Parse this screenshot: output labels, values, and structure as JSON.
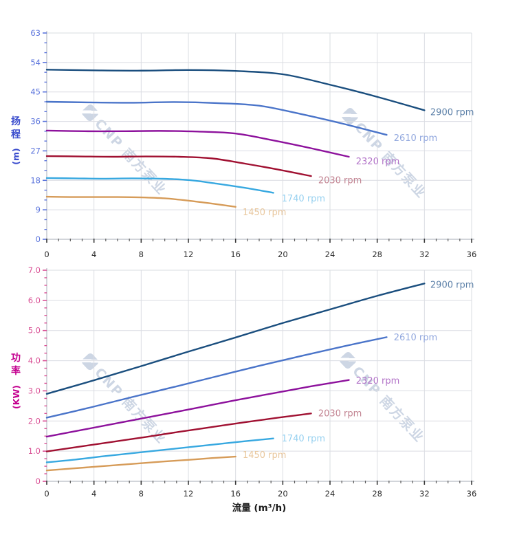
{
  "watermark": {
    "text": "CNP 南方泵业"
  },
  "chart_data": [
    {
      "id": "head-chart",
      "type": "line",
      "y_title_chars": [
        "扬",
        "程"
      ],
      "y_title_unit": "(m)",
      "x_title": null,
      "axis_color": "#5b74dc",
      "title_color": "#3a4ccd",
      "ylim": [
        0,
        63
      ],
      "ymajor": 9,
      "yminor": 3,
      "yticklabels": [
        "0",
        "9",
        "18",
        "27",
        "36",
        "45",
        "54",
        "63"
      ],
      "xlim": [
        0,
        36
      ],
      "xmajor": 4,
      "xminor": 1,
      "xticklabels": [
        "0",
        "4",
        "8",
        "12",
        "16",
        "20",
        "24",
        "28",
        "32",
        "36"
      ],
      "grid": true,
      "legend_position": "end-of-line-labels",
      "series": [
        {
          "name": "2900 rpm",
          "color": "#1a4e7e",
          "label_color": "#5c80a8",
          "x": [
            0,
            4,
            8,
            12,
            16,
            20,
            24,
            28,
            32
          ],
          "y": [
            51.8,
            51.6,
            51.5,
            51.7,
            51.4,
            50.4,
            47.2,
            43.5,
            39.4
          ],
          "label_at": [
            32.5,
            38.6
          ]
        },
        {
          "name": "2610 rpm",
          "color": "#4a74c9",
          "label_color": "#92a8de",
          "x": [
            0,
            3.6,
            7.2,
            10.8,
            14.4,
            18,
            21.6,
            25.2,
            28.8
          ],
          "y": [
            42.0,
            41.8,
            41.7,
            41.9,
            41.6,
            40.8,
            38.2,
            35.2,
            31.9
          ],
          "label_at": [
            29.4,
            30.8
          ]
        },
        {
          "name": "2320 rpm",
          "color": "#8d119c",
          "label_color": "#b273c8",
          "x": [
            0,
            3.2,
            6.4,
            9.6,
            12.8,
            16,
            19.2,
            22.4,
            25.6
          ],
          "y": [
            33.2,
            33.0,
            33.0,
            33.1,
            32.9,
            32.3,
            30.2,
            27.8,
            25.2
          ],
          "label_at": [
            26.2,
            23.6
          ]
        },
        {
          "name": "2030 rpm",
          "color": "#a01031",
          "label_color": "#c28391",
          "x": [
            0,
            2.8,
            5.6,
            8.4,
            11.2,
            14,
            16.8,
            19.6,
            22.4
          ],
          "y": [
            25.4,
            25.3,
            25.2,
            25.3,
            25.2,
            24.7,
            23.1,
            21.3,
            19.3
          ],
          "label_at": [
            23.0,
            17.8
          ]
        },
        {
          "name": "1740 rpm",
          "color": "#37a8e0",
          "label_color": "#97d1f0",
          "x": [
            0,
            2.4,
            4.8,
            7.2,
            9.6,
            12,
            14.4,
            16.8,
            19.2
          ],
          "y": [
            18.7,
            18.6,
            18.5,
            18.6,
            18.5,
            18.1,
            17.0,
            15.7,
            14.2
          ],
          "label_at": [
            19.9,
            12.3
          ]
        },
        {
          "name": "1450 rpm",
          "color": "#d69b58",
          "label_color": "#e9c79d",
          "x": [
            0,
            2,
            4,
            6,
            8,
            10,
            12,
            14,
            16
          ],
          "y": [
            13.0,
            12.9,
            12.9,
            12.9,
            12.8,
            12.5,
            11.8,
            10.9,
            9.9
          ],
          "label_at": [
            16.6,
            8.1
          ]
        }
      ]
    },
    {
      "id": "power-chart",
      "type": "line",
      "y_title_chars": [
        "功",
        "率"
      ],
      "y_title_unit": "(KW)",
      "x_title": "流量 (m³/h)",
      "axis_color": "#d94f94",
      "title_color": "#c4008f",
      "ylim": [
        0,
        7
      ],
      "ymajor": 1,
      "yminor": 0.25,
      "yticklabels": [
        "0",
        "1.0",
        "2.0",
        "3.0",
        "4.0",
        "5.0",
        "6.0",
        "7.0"
      ],
      "xlim": [
        0,
        36
      ],
      "xmajor": 4,
      "xminor": 1,
      "xticklabels": [
        "0",
        "4",
        "8",
        "12",
        "16",
        "20",
        "24",
        "28",
        "32",
        "36"
      ],
      "grid": true,
      "legend_position": "end-of-line-labels",
      "series": [
        {
          "name": "2900 rpm",
          "color": "#1a4e7e",
          "label_color": "#5c80a8",
          "x": [
            0,
            4,
            8,
            12,
            16,
            20,
            24,
            28,
            32
          ],
          "y": [
            2.9,
            3.35,
            3.82,
            4.3,
            4.77,
            5.25,
            5.7,
            6.15,
            6.56
          ],
          "label_at": [
            32.5,
            6.5
          ]
        },
        {
          "name": "2610 rpm",
          "color": "#4a74c9",
          "label_color": "#92a8de",
          "x": [
            0,
            3.6,
            7.2,
            10.8,
            14.4,
            18,
            21.6,
            25.2,
            28.8
          ],
          "y": [
            2.11,
            2.44,
            2.79,
            3.13,
            3.48,
            3.83,
            4.16,
            4.48,
            4.78
          ],
          "label_at": [
            29.4,
            4.75
          ]
        },
        {
          "name": "2320 rpm",
          "color": "#8d119c",
          "label_color": "#b273c8",
          "x": [
            0,
            3.2,
            6.4,
            9.6,
            12.8,
            16,
            19.2,
            22.4,
            25.6
          ],
          "y": [
            1.48,
            1.72,
            1.96,
            2.2,
            2.44,
            2.69,
            2.92,
            3.15,
            3.36
          ],
          "label_at": [
            26.2,
            3.32
          ]
        },
        {
          "name": "2030 rpm",
          "color": "#a01031",
          "label_color": "#c28391",
          "x": [
            0,
            2.8,
            5.6,
            8.4,
            11.2,
            14,
            16.8,
            19.6,
            22.4
          ],
          "y": [
            0.99,
            1.15,
            1.31,
            1.47,
            1.64,
            1.8,
            1.96,
            2.11,
            2.25
          ],
          "label_at": [
            23.0,
            2.24
          ]
        },
        {
          "name": "1740 rpm",
          "color": "#37a8e0",
          "label_color": "#97d1f0",
          "x": [
            0,
            2.4,
            4.8,
            7.2,
            9.6,
            12,
            14.4,
            16.8,
            19.2
          ],
          "y": [
            0.63,
            0.72,
            0.83,
            0.93,
            1.03,
            1.13,
            1.23,
            1.33,
            1.42
          ],
          "label_at": [
            19.9,
            1.4
          ]
        },
        {
          "name": "1450 rpm",
          "color": "#d69b58",
          "label_color": "#e9c79d",
          "x": [
            0,
            2,
            4,
            6,
            8,
            10,
            12,
            14,
            16
          ],
          "y": [
            0.36,
            0.42,
            0.48,
            0.54,
            0.6,
            0.66,
            0.71,
            0.77,
            0.82
          ],
          "label_at": [
            16.6,
            0.86
          ]
        }
      ]
    }
  ]
}
